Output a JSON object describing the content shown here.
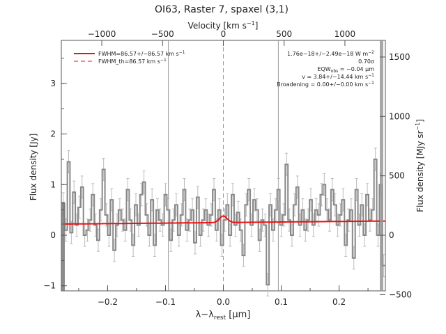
{
  "chart_data": {
    "type": "line",
    "title": "OI63, Raster 7, spaxel (3,1)",
    "xlabel_main": "λ−λ",
    "xlabel_sub": "rest",
    "xlabel_unit": " [μm]",
    "xlabel_top_main": "Velocity [km s",
    "xlabel_top_sup": "−1",
    "xlabel_top_end": "]",
    "ylabel": "Flux density [Jy]",
    "ylabel_right_main": "Flux density [MJy sr",
    "ylabel_right_sup": "−1",
    "ylabel_right_end": "]",
    "xlim": [
      -0.28,
      0.28
    ],
    "ylim": [
      -1.1,
      3.85
    ],
    "x_ticks": [
      -0.2,
      -0.1,
      0.0,
      0.1,
      0.2
    ],
    "x_tick_labels": [
      "−0.2",
      "−0.1",
      "0.0",
      "0.1",
      "0.2"
    ],
    "y_ticks": [
      -1,
      0,
      1,
      2,
      3
    ],
    "y_tick_labels": [
      "−1",
      "0",
      "1",
      "2",
      "3"
    ],
    "top_ticks_velocity": [
      -1000,
      -500,
      0,
      500,
      1000
    ],
    "top_tick_labels": [
      "−1000",
      "−500",
      "0",
      "500",
      "1000"
    ],
    "right_ticks_mjy": [
      -500,
      0,
      500,
      1000,
      1500
    ],
    "right_tick_labels": [
      "−500",
      "0",
      "500",
      "1000",
      "1500"
    ],
    "velocity_per_micron": 4760,
    "mjy_per_jy": 426,
    "vertical_lines_x": [
      -0.095,
      0.0,
      0.095
    ],
    "legend": {
      "solid": "FWHM=86.57+/−86.57 km s",
      "solid_sup": "−1",
      "dashed": "FWHM_th=86.57 km s",
      "dashed_sup": "−1"
    },
    "annotations": {
      "line1_main": "1.76e−18+/−2.49e−18 W m",
      "line1_sup": "−2",
      "line2": "0.70σ",
      "line3_main": "EQW",
      "line3_sub": "obs",
      "line3_end": " = −0.04 μm",
      "line4_main": "v = 3.84+/−14.44 km s",
      "line4_sup": "−1",
      "line5_main": "Broadening = 0.00+/−0.00 km s",
      "line5_sup": "−1"
    },
    "series": [
      {
        "kind": "spectrum",
        "color": "#888888",
        "x_start": -0.279,
        "x_step": 0.00465,
        "y": [
          0.62,
          0.1,
          1.45,
          0.05,
          0.85,
          0.2,
          0.55,
          0.95,
          0.0,
          0.1,
          0.3,
          0.8,
          0.2,
          -0.1,
          0.5,
          1.3,
          0.4,
          0.0,
          0.7,
          -0.3,
          0.2,
          0.5,
          0.3,
          0.1,
          0.9,
          0.3,
          -0.2,
          0.6,
          0.2,
          0.8,
          1.05,
          0.4,
          0.0,
          0.7,
          -0.2,
          0.5,
          0.3,
          0.2,
          0.8,
          0.5,
          -0.1,
          0.3,
          0.6,
          0.0,
          0.4,
          0.9,
          0.1,
          0.3,
          0.5,
          -0.15,
          0.75,
          0.0,
          0.3,
          0.5,
          0.2,
          0.4,
          0.9,
          0.1,
          0.5,
          -0.2,
          0.3,
          0.6,
          0.0,
          0.8,
          0.2,
          0.45,
          0.1,
          -0.4,
          0.6,
          0.9,
          0.2,
          0.7,
          0.5,
          -0.1,
          0.3,
          0.2,
          -0.98,
          0.6,
          0.1,
          0.5,
          0.9,
          0.2,
          0.4,
          1.4,
          0.3,
          0.0,
          0.6,
          0.95,
          0.2,
          0.5,
          0.1,
          0.3,
          0.7,
          0.2,
          0.5,
          0.4,
          0.8,
          1.0,
          0.5,
          0.3,
          0.9,
          0.6,
          0.2,
          0.4,
          0.7,
          -0.2,
          0.3,
          0.5,
          -0.45,
          0.9,
          0.2,
          0.6,
          0.0,
          0.8,
          0.3,
          0.5,
          1.5,
          0.0,
          1.0,
          -0.6
        ]
      },
      {
        "kind": "fit",
        "color": "#ee1111",
        "baseline_start": 0.22,
        "baseline_end": 0.28,
        "peak_center": 0.0,
        "peak_height": 0.13,
        "peak_sigma": 0.0065
      }
    ]
  }
}
